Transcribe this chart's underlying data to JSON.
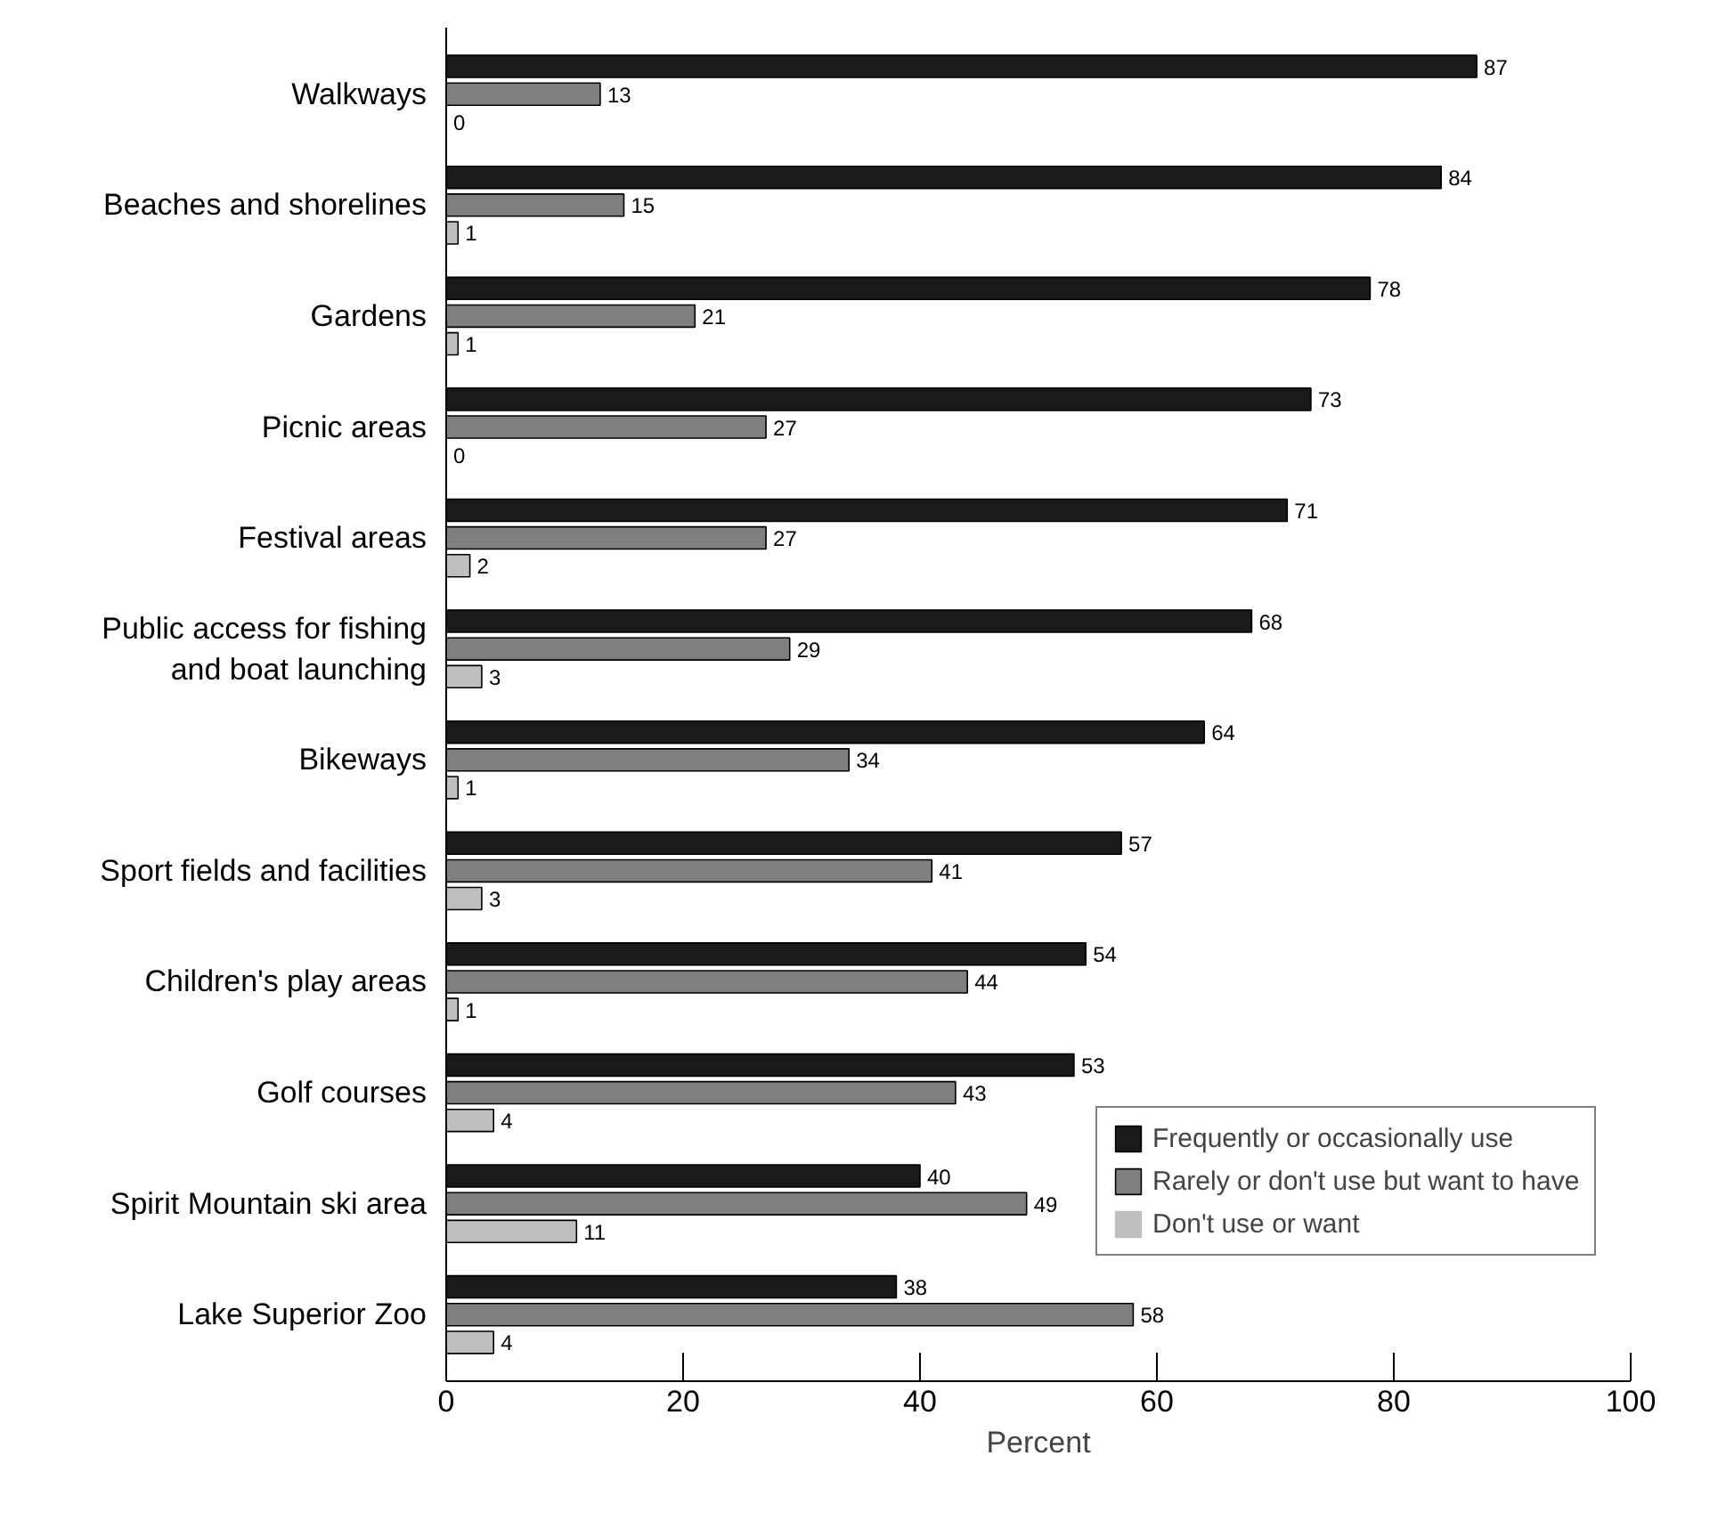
{
  "chart_data": {
    "type": "bar",
    "orientation": "horizontal",
    "xlabel": "Percent",
    "categories": [
      "Walkways",
      "Beaches and shorelines",
      "Gardens",
      "Picnic areas",
      "Festival areas",
      "Public access for fishing\nand boat launching",
      "Bikeways",
      "Sport fields and facilities",
      "Children's play areas",
      "Golf courses",
      "Spirit Mountain ski area",
      "Lake Superior Zoo"
    ],
    "series": [
      {
        "name": "Frequently or occasionally use",
        "color": "#1a1a1a",
        "values": [
          87,
          84,
          78,
          73,
          71,
          68,
          64,
          57,
          54,
          53,
          40,
          38
        ]
      },
      {
        "name": "Rarely or don't use but want to have",
        "color": "#7f7f7f",
        "values": [
          13,
          15,
          21,
          27,
          27,
          29,
          34,
          41,
          44,
          43,
          49,
          58
        ]
      },
      {
        "name": "Don't use or want",
        "color": "#bfbfbf",
        "values": [
          0,
          1,
          1,
          0,
          2,
          3,
          1,
          3,
          1,
          4,
          11,
          4
        ]
      }
    ],
    "xlim": [
      0,
      100
    ],
    "xticks": [
      0,
      20,
      40,
      60,
      80,
      100
    ],
    "data_labels": true,
    "legend": "bottom right",
    "grid": false
  }
}
